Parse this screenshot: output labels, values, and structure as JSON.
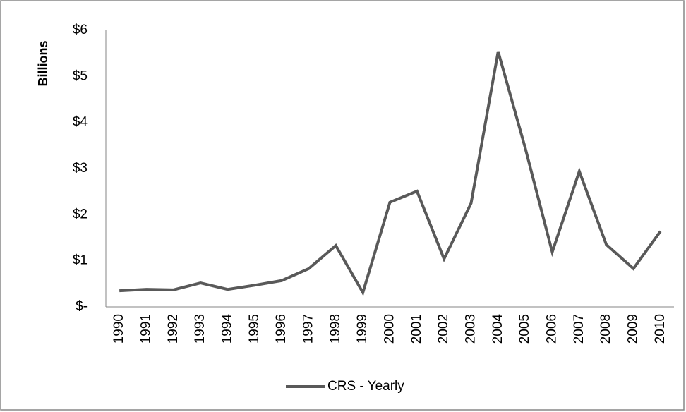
{
  "chart_data": {
    "type": "line",
    "ylabel": "Billions",
    "categories": [
      "1990",
      "1991",
      "1992",
      "1993",
      "1994",
      "1995",
      "1996",
      "1997",
      "1998",
      "1999",
      "2000",
      "2001",
      "2002",
      "2003",
      "2004",
      "2005",
      "2006",
      "2007",
      "2008",
      "2009",
      "2010"
    ],
    "series": [
      {
        "name": "CRS - Yearly",
        "color": "#595959",
        "values": [
          0.35,
          0.38,
          0.37,
          0.52,
          0.38,
          0.47,
          0.57,
          0.83,
          1.33,
          0.31,
          2.27,
          2.51,
          1.04,
          2.25,
          5.54,
          3.45,
          1.19,
          2.94,
          1.35,
          0.83,
          1.64
        ]
      }
    ],
    "ylim": [
      0,
      6
    ],
    "yticks": [
      {
        "value": 0,
        "label": "$-"
      },
      {
        "value": 1,
        "label": "$1"
      },
      {
        "value": 2,
        "label": "$2"
      },
      {
        "value": 3,
        "label": "$3"
      },
      {
        "value": 4,
        "label": "$4"
      },
      {
        "value": 5,
        "label": "$5"
      },
      {
        "value": 6,
        "label": "$6"
      }
    ],
    "grid": false,
    "legend": "bottom"
  }
}
